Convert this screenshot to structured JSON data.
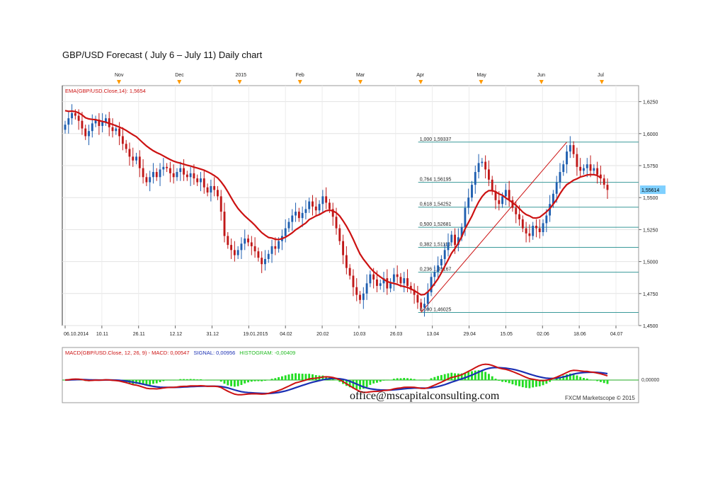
{
  "title": "GBP/USD Forecast ( July 6 – July 11) Daily chart",
  "chart_data": {
    "type": "candlestick",
    "price_panel": {
      "indicator_label": "EMA(GBP/USD.Close,14): 1,5654",
      "ylim": [
        1.45,
        1.6375
      ],
      "y_ticks": [
        "1,6250",
        "1,6000",
        "1,5750",
        "1,5500",
        "1,5250",
        "1,5000",
        "1,4750",
        "1,4500"
      ],
      "y_tick_values": [
        1.625,
        1.6,
        1.575,
        1.55,
        1.525,
        1.5,
        1.475,
        1.45
      ],
      "last_price_label": "1,55614",
      "last_price": 1.55614,
      "x_labels": [
        "06.10.2014",
        "10.11",
        "26.11",
        "12.12",
        "31.12",
        "19.01.2015",
        "04.02",
        "20.02",
        "10.03",
        "26.03",
        "13.04",
        "29.04",
        "15.05",
        "02.06",
        "18.06",
        "04.07"
      ],
      "month_markers": [
        "Nov",
        "Dec",
        "2015",
        "Feb",
        "Mar",
        "Apr",
        "May",
        "Jun",
        "Jul"
      ],
      "closes": [
        1.607,
        1.612,
        1.616,
        1.614,
        1.61,
        1.604,
        1.598,
        1.602,
        1.608,
        1.611,
        1.606,
        1.609,
        1.612,
        1.605,
        1.602,
        1.604,
        1.598,
        1.592,
        1.588,
        1.582,
        1.579,
        1.582,
        1.573,
        1.566,
        1.562,
        1.566,
        1.57,
        1.566,
        1.572,
        1.574,
        1.573,
        1.569,
        1.566,
        1.57,
        1.573,
        1.568,
        1.566,
        1.569,
        1.565,
        1.562,
        1.565,
        1.558,
        1.554,
        1.559,
        1.556,
        1.551,
        1.539,
        1.52,
        1.513,
        1.509,
        1.505,
        1.509,
        1.514,
        1.518,
        1.515,
        1.512,
        1.508,
        1.503,
        1.498,
        1.502,
        1.506,
        1.512,
        1.51,
        1.516,
        1.52,
        1.526,
        1.531,
        1.536,
        1.539,
        1.534,
        1.538,
        1.541,
        1.547,
        1.543,
        1.54,
        1.545,
        1.551,
        1.546,
        1.541,
        1.535,
        1.526,
        1.516,
        1.505,
        1.495,
        1.489,
        1.48,
        1.474,
        1.47,
        1.475,
        1.483,
        1.49,
        1.486,
        1.481,
        1.483,
        1.487,
        1.479,
        1.484,
        1.49,
        1.488,
        1.483,
        1.487,
        1.481,
        1.478,
        1.474,
        1.468,
        1.464,
        1.467,
        1.476,
        1.488,
        1.492,
        1.497,
        1.502,
        1.509,
        1.515,
        1.521,
        1.513,
        1.519,
        1.527,
        1.542,
        1.55,
        1.56,
        1.57,
        1.577,
        1.578,
        1.572,
        1.564,
        1.555,
        1.548,
        1.545,
        1.551,
        1.556,
        1.548,
        1.542,
        1.537,
        1.533,
        1.526,
        1.522,
        1.52,
        1.528,
        1.526,
        1.523,
        1.53,
        1.536,
        1.545,
        1.553,
        1.562,
        1.57,
        1.576,
        1.586,
        1.591,
        1.584,
        1.574,
        1.571,
        1.573,
        1.576,
        1.571,
        1.573,
        1.568,
        1.565,
        1.56,
        1.556
      ],
      "ema14": [
        1.618,
        1.6174,
        1.6176,
        1.6172,
        1.6162,
        1.6146,
        1.6124,
        1.6115,
        1.6111,
        1.6109,
        1.6102,
        1.6095,
        1.6089,
        1.608,
        1.6072,
        1.6062,
        1.6051,
        1.604,
        1.6025,
        1.6008,
        1.5991,
        1.5976,
        1.5952,
        1.5927,
        1.5903,
        1.5884,
        1.5866,
        1.5852,
        1.584,
        1.5826,
        1.5811,
        1.5797,
        1.5785,
        1.5776,
        1.5769,
        1.5761,
        1.5753,
        1.5747,
        1.5738,
        1.5731,
        1.5723,
        1.5714,
        1.5702,
        1.5688,
        1.5672,
        1.5654,
        1.5624,
        1.5588,
        1.5545,
        1.5499,
        1.5454,
        1.5415,
        1.5385,
        1.5357,
        1.5333,
        1.5309,
        1.5283,
        1.5254,
        1.5226,
        1.5206,
        1.5188,
        1.5184,
        1.5174,
        1.5172,
        1.5179,
        1.5191,
        1.5207,
        1.5225,
        1.5248,
        1.5265,
        1.5284,
        1.5301,
        1.5328,
        1.5342,
        1.5357,
        1.5367,
        1.5382,
        1.5397,
        1.5402,
        1.5396,
        1.5381,
        1.5356,
        1.5318,
        1.5276,
        1.5229,
        1.5174,
        1.5115,
        1.5059,
        1.5019,
        1.4985,
        1.4951,
        1.4922,
        1.49,
        1.488,
        1.4862,
        1.4844,
        1.4836,
        1.4829,
        1.4822,
        1.4811,
        1.4805,
        1.4798,
        1.4786,
        1.4773,
        1.4756,
        1.474,
        1.4743,
        1.4763,
        1.4792,
        1.4828,
        1.4865,
        1.4912,
        1.4963,
        1.5014,
        1.5066,
        1.5102,
        1.5144,
        1.5194,
        1.5256,
        1.5306,
        1.5355,
        1.5414,
        1.5466,
        1.5508,
        1.5537,
        1.5555,
        1.5554,
        1.5546,
        1.5529,
        1.5519,
        1.5497,
        1.548,
        1.546,
        1.544,
        1.5414,
        1.5387,
        1.5368,
        1.5357,
        1.5342,
        1.534,
        1.5347,
        1.5367,
        1.5389,
        1.5415,
        1.5449,
        1.5484,
        1.5531,
        1.557,
        1.5601,
        1.5618,
        1.5636,
        1.5647,
        1.5661,
        1.5668,
        1.5677,
        1.568,
        1.5679,
        1.5673,
        1.5654
      ],
      "fibonacci": [
        {
          "label": "1,000 1,59337",
          "value": 1.59337
        },
        {
          "label": "0,764 1,56195",
          "value": 1.56195
        },
        {
          "label": "0,618 1,54252",
          "value": 1.54252
        },
        {
          "label": "0,500 1,52681",
          "value": 1.52681
        },
        {
          "label": "0,382 1,51110",
          "value": 1.5111
        },
        {
          "label": "0,236 1,49167",
          "value": 1.49167
        },
        {
          "label": "0,000 1,46025",
          "value": 1.46025
        }
      ],
      "fib_low_point": {
        "index": 105,
        "value": 1.46025
      },
      "fib_high_point": {
        "index": 148,
        "value": 1.59337
      }
    },
    "macd_panel": {
      "label_prefix": "MACD(GBP/USD.Close, 12, 26, 9) - ",
      "macd_label": "MACD: 0,00547",
      "signal_label": "SIGNAL: 0,00956",
      "histogram_label": "HISTOGRAM: -0,00409",
      "zero_label": "0,00000",
      "ylim": [
        -0.026,
        0.03
      ],
      "series": [
        {
          "name": "MACD",
          "color": "#cc1111"
        },
        {
          "name": "SIGNAL",
          "color": "#1a2fb3"
        },
        {
          "name": "HISTOGRAM",
          "color": "#22dd22"
        }
      ]
    }
  },
  "watermark": "office@mscapitalconsulting.com",
  "credit": "FXCM Marketscope © 2015",
  "colors": {
    "up": "#1f5fb0",
    "down": "#c01818",
    "ema": "#cc1111",
    "fib": "#3a9a9a",
    "macd": "#cc1111",
    "signal": "#1a2fb3",
    "histogram": "#22dd22",
    "marker": "#ff9900",
    "price_tag": "#7fd0ff"
  }
}
